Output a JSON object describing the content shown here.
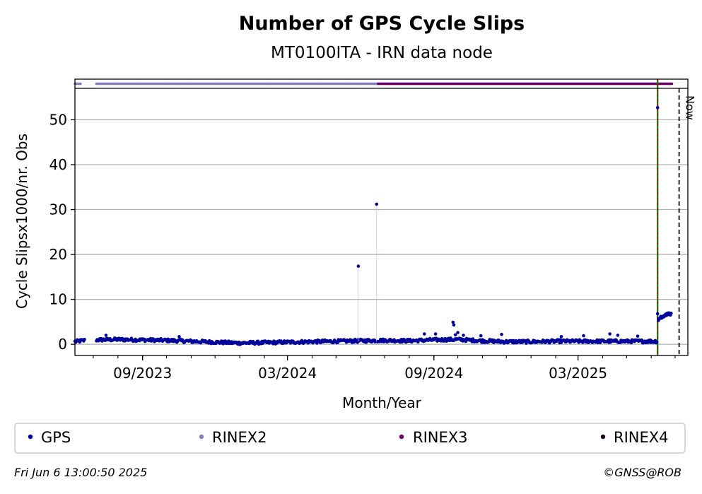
{
  "chart_data": {
    "type": "scatter",
    "title": "Number of GPS Cycle Slips",
    "subtitle": "MT0100ITA - IRN data node",
    "xlabel": "Month/Year",
    "ylabel": "Cycle Slipsx1000/nr. Obs",
    "ylim": [
      -2.5,
      57
    ],
    "xlim": [
      "2023-06-08",
      "2025-07-17"
    ],
    "yticks": [
      0,
      10,
      20,
      30,
      40,
      50
    ],
    "xticks": [
      {
        "date": "2023-09-01",
        "label": "09/2023"
      },
      {
        "date": "2024-03-01",
        "label": "03/2024"
      },
      {
        "date": "2024-09-01",
        "label": "09/2024"
      },
      {
        "date": "2025-03-01",
        "label": "03/2025"
      }
    ],
    "grid": "y",
    "legend_position": "bottom",
    "legend": [
      {
        "label": "GPS",
        "color": "#00009a"
      },
      {
        "label": "RINEX2",
        "color": "#8080c0"
      },
      {
        "label": "RINEX3",
        "color": "#6a0069"
      },
      {
        "label": "RINEX4",
        "color": "#200020"
      }
    ],
    "series": [
      {
        "name": "GPS",
        "color": "#00009a",
        "baseline": [
          [
            "2023-06-08",
            0.5
          ],
          [
            "2023-06-20",
            0.8
          ],
          [
            "2023-07-05",
            0.9
          ],
          [
            "2023-08-01",
            1.0
          ],
          [
            "2023-09-01",
            0.9
          ],
          [
            "2023-10-01",
            0.8
          ],
          [
            "2023-11-01",
            0.6
          ],
          [
            "2023-12-01",
            0.4
          ],
          [
            "2024-01-01",
            0.2
          ],
          [
            "2024-02-01",
            0.3
          ],
          [
            "2024-03-01",
            0.4
          ],
          [
            "2024-04-01",
            0.5
          ],
          [
            "2024-05-01",
            0.6
          ],
          [
            "2024-06-01",
            0.7
          ],
          [
            "2024-07-01",
            0.8
          ],
          [
            "2024-08-01",
            0.7
          ],
          [
            "2024-09-01",
            0.9
          ],
          [
            "2024-10-01",
            1.0
          ],
          [
            "2024-11-01",
            0.7
          ],
          [
            "2024-12-01",
            0.5
          ],
          [
            "2025-01-01",
            0.5
          ],
          [
            "2025-02-01",
            0.6
          ],
          [
            "2025-03-01",
            0.6
          ],
          [
            "2025-04-01",
            0.6
          ],
          [
            "2025-05-01",
            0.6
          ],
          [
            "2025-06-01",
            0.6
          ],
          [
            "2025-06-09",
            0.6
          ]
        ],
        "gaps": [
          [
            "2023-06-20",
            "2023-07-05"
          ]
        ],
        "outliers": [
          [
            "2023-07-17",
            2.0
          ],
          [
            "2023-10-17",
            1.7
          ],
          [
            "2024-05-29",
            17.4
          ],
          [
            "2024-06-21",
            31.2
          ],
          [
            "2024-08-20",
            2.3
          ],
          [
            "2024-09-25",
            4.9
          ],
          [
            "2024-09-26",
            4.3
          ],
          [
            "2024-09-28",
            2.1
          ],
          [
            "2024-10-01",
            2.6
          ],
          [
            "2024-09-03",
            2.3
          ],
          [
            "2024-10-08",
            2.0
          ],
          [
            "2024-10-30",
            1.9
          ],
          [
            "2024-11-25",
            2.2
          ],
          [
            "2025-02-08",
            1.7
          ],
          [
            "2025-03-08",
            1.9
          ],
          [
            "2025-04-10",
            2.3
          ],
          [
            "2025-04-20",
            2.0
          ],
          [
            "2025-05-15",
            1.8
          ]
        ],
        "tail": [
          [
            "2025-06-09",
            52.7
          ],
          [
            "2025-06-09",
            6.8
          ],
          [
            "2025-06-10",
            5.7
          ],
          [
            "2025-06-10",
            5.3
          ],
          [
            "2025-06-11",
            5.6
          ],
          [
            "2025-06-12",
            5.9
          ],
          [
            "2025-06-13",
            6.2
          ],
          [
            "2025-06-14",
            5.8
          ],
          [
            "2025-06-15",
            6.0
          ],
          [
            "2025-06-16",
            6.3
          ],
          [
            "2025-06-17",
            6.1
          ],
          [
            "2025-06-18",
            6.5
          ],
          [
            "2025-06-19",
            6.7
          ],
          [
            "2025-06-20",
            6.4
          ],
          [
            "2025-06-21",
            6.9
          ],
          [
            "2025-06-22",
            6.6
          ],
          [
            "2025-06-23",
            7.0
          ],
          [
            "2025-06-24",
            6.8
          ],
          [
            "2025-06-25",
            6.5
          ],
          [
            "2025-06-26",
            6.9
          ]
        ]
      }
    ],
    "format_bands": [
      {
        "name": "RINEX2",
        "color": "#8080c0",
        "ranges": [
          [
            "2023-06-08",
            "2023-06-15"
          ],
          [
            "2023-07-05",
            "2024-06-23"
          ]
        ]
      },
      {
        "name": "RINEX3",
        "color": "#6a0069",
        "ranges": [
          [
            "2024-06-23",
            "2025-06-27"
          ]
        ]
      }
    ],
    "markers": [
      {
        "kind": "event",
        "date": "2025-06-09",
        "color_a": "#008000",
        "color_b": "#cc0000"
      },
      {
        "kind": "now",
        "date": "2025-07-06",
        "label": "Now"
      }
    ]
  },
  "footer": {
    "timestamp": "Fri Jun  6 13:00:50 2025",
    "credit": "©GNSS@ROB"
  }
}
